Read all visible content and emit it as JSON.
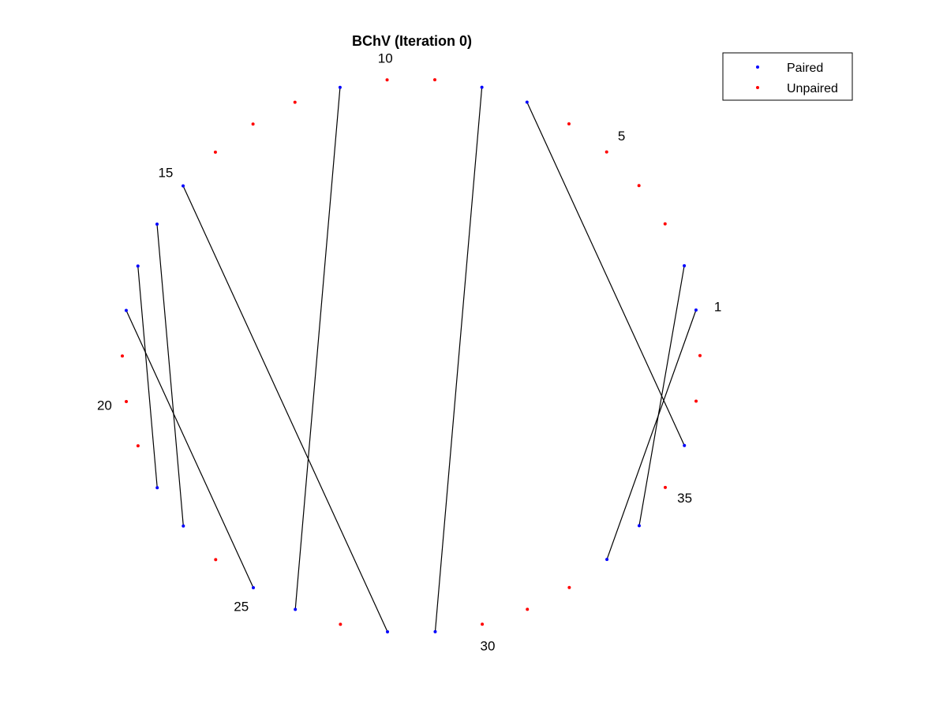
{
  "chart_data": {
    "type": "scatter",
    "title": "BChV (Iteration 0)",
    "node_count": 38,
    "grid": false,
    "axes_visible": false,
    "legend": {
      "placement": "top-right",
      "entries": [
        {
          "label": "Paired",
          "color": "#0000ff"
        },
        {
          "label": "Unpaired",
          "color": "#ff0000"
        }
      ]
    },
    "node_labels": [
      {
        "node": 1,
        "text": "1"
      },
      {
        "node": 5,
        "text": "5"
      },
      {
        "node": 10,
        "text": "10"
      },
      {
        "node": 15,
        "text": "15"
      },
      {
        "node": 20,
        "text": "20"
      },
      {
        "node": 25,
        "text": "25"
      },
      {
        "node": 30,
        "text": "30"
      },
      {
        "node": 35,
        "text": "35"
      }
    ],
    "pairs": [
      [
        1,
        33
      ],
      [
        2,
        34
      ],
      [
        7,
        36
      ],
      [
        8,
        29
      ],
      [
        11,
        26
      ],
      [
        15,
        28
      ],
      [
        16,
        23
      ],
      [
        17,
        22
      ],
      [
        18,
        25
      ]
    ],
    "line_color": "#000000"
  }
}
